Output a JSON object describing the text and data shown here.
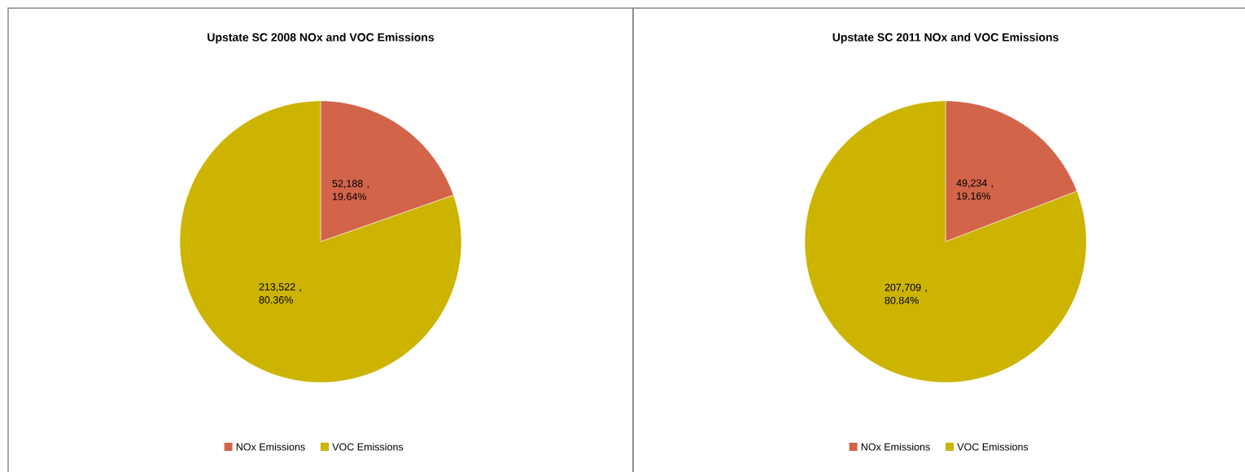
{
  "chart_data": [
    {
      "type": "pie",
      "title": "Upstate SC 2008 NOx and VOC Emissions",
      "categories": [
        "NOx Emissions",
        "VOC Emissions"
      ],
      "values": [
        52188,
        213522
      ],
      "colors": [
        "#d2644a",
        "#ccb400"
      ],
      "value_labels": [
        "52,188 , 19.64%",
        "213,522 , 80.36%"
      ],
      "legend": "bottom"
    },
    {
      "type": "pie",
      "title": "Upstate SC 2011 NOx and VOC Emissions",
      "categories": [
        "NOx Emissions",
        "VOC Emissions"
      ],
      "values": [
        49234,
        207709
      ],
      "colors": [
        "#d2644a",
        "#ccb400"
      ],
      "value_labels": [
        "49,234 , 19.16%",
        "207,709 , 80.84%"
      ],
      "legend": "bottom"
    }
  ]
}
